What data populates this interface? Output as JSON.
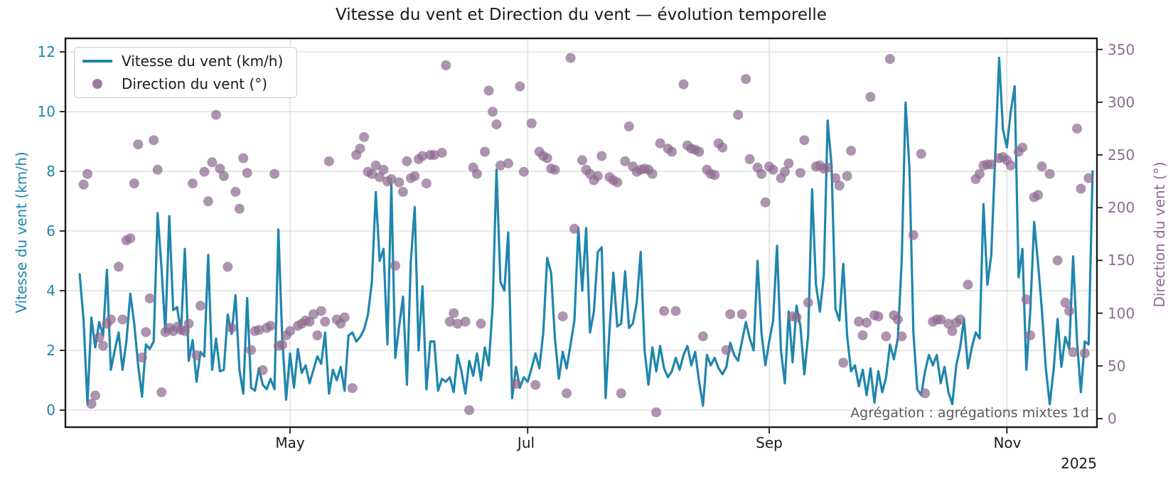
{
  "title": "Vitesse du vent et Direction du vent — évolution temporelle",
  "annotation": "Agrégation : agrégations mixtes 1d",
  "legend": [
    {
      "label": "Vitesse du vent (km/h)",
      "type": "line",
      "color": "#1f86ad"
    },
    {
      "label": "Direction du vent (°)",
      "type": "dot",
      "color": "#8e6b90"
    }
  ],
  "axes": {
    "left": {
      "label": "Vitesse du vent (km/h)",
      "color": "#1f86ad",
      "ticks": [
        "0",
        "2",
        "4",
        "6",
        "8",
        "10",
        "12"
      ]
    },
    "right": {
      "label": "Direction du vent (°)",
      "color": "#8e6b90",
      "ticks": [
        "0",
        "50",
        "100",
        "150",
        "200",
        "250",
        "300",
        "350"
      ]
    },
    "bottom": {
      "ticks": [
        "May",
        "Jul",
        "Sep",
        "Nov"
      ],
      "year": "2025"
    }
  },
  "chart_data": {
    "type": "line+scatter",
    "x_unit": "days since 2025-03-08 (1-day aggregation)",
    "x_tick_days": [
      54,
      115,
      177,
      238
    ],
    "x_tick_labels": [
      "May",
      "Jul",
      "Sep",
      "Nov"
    ],
    "left_ylim": [
      -0.57,
      12.45
    ],
    "right_ylim": [
      -8,
      362
    ],
    "left_grid_values": [
      0,
      2,
      4,
      6,
      8,
      10,
      12
    ],
    "right_tick_values": [
      0,
      50,
      100,
      150,
      200,
      250,
      300,
      350
    ],
    "series": [
      {
        "name": "Vitesse du vent (km/h)",
        "type": "line",
        "axis": "left",
        "color": "#1f86ad",
        "y": [
          4.55,
          3.0,
          0.2,
          3.1,
          2.1,
          2.95,
          2.5,
          4.7,
          1.35,
          2.0,
          2.6,
          1.35,
          2.3,
          3.9,
          2.9,
          1.5,
          0.45,
          2.2,
          2.05,
          2.3,
          6.6,
          4.75,
          2.6,
          6.5,
          3.35,
          3.45,
          2.6,
          5.4,
          1.65,
          2.35,
          0.95,
          1.95,
          1.8,
          5.2,
          1.35,
          2.4,
          1.3,
          1.35,
          3.2,
          2.55,
          3.85,
          1.35,
          0.55,
          3.75,
          0.75,
          0.65,
          1.4,
          0.85,
          0.7,
          1.05,
          0.7,
          6.05,
          2.4,
          0.35,
          1.9,
          0.75,
          2.05,
          1.25,
          1.5,
          0.9,
          1.35,
          1.8,
          1.55,
          2.6,
          0.55,
          1.35,
          1.0,
          1.45,
          0.65,
          2.5,
          2.6,
          2.3,
          2.45,
          2.7,
          3.2,
          4.3,
          7.3,
          5.0,
          5.4,
          2.2,
          7.55,
          1.75,
          2.8,
          3.8,
          0.85,
          5.0,
          6.8,
          2.0,
          4.15,
          0.7,
          2.3,
          2.3,
          0.65,
          1.05,
          0.95,
          1.1,
          0.6,
          1.85,
          1.3,
          0.55,
          1.65,
          1.15,
          1.9,
          1.0,
          2.1,
          1.5,
          3.5,
          8.05,
          4.3,
          4.0,
          5.95,
          0.4,
          1.45,
          0.75,
          1.1,
          0.95,
          1.4,
          1.9,
          1.4,
          2.6,
          5.1,
          4.6,
          2.4,
          1.05,
          1.95,
          1.4,
          2.2,
          3.0,
          6.1,
          4.0,
          6.1,
          2.6,
          3.3,
          5.3,
          5.45,
          0.4,
          2.7,
          4.6,
          2.8,
          2.9,
          4.65,
          2.75,
          2.9,
          3.6,
          5.3,
          2.0,
          0.85,
          2.1,
          1.3,
          2.15,
          1.4,
          1.1,
          1.3,
          1.75,
          1.35,
          1.85,
          2.15,
          1.5,
          1.95,
          0.95,
          0.15,
          1.85,
          1.5,
          1.75,
          1.4,
          1.2,
          1.45,
          2.25,
          1.85,
          1.65,
          2.3,
          2.95,
          2.4,
          2.0,
          5.0,
          2.6,
          1.5,
          2.3,
          3.0,
          5.5,
          2.0,
          0.9,
          3.3,
          1.6,
          3.5,
          2.8,
          1.2,
          2.5,
          7.4,
          4.2,
          3.3,
          4.5,
          9.7,
          8.2,
          3.4,
          3.0,
          4.9,
          2.5,
          1.3,
          1.5,
          0.8,
          1.35,
          0.5,
          1.4,
          0.25,
          1.3,
          0.6,
          1.1,
          2.2,
          1.7,
          2.4,
          5.0,
          10.3,
          8.1,
          2.6,
          0.7,
          0.5,
          1.3,
          1.85,
          1.5,
          1.85,
          0.9,
          1.45,
          0.6,
          0.2,
          1.5,
          2.1,
          3.05,
          1.4,
          2.1,
          2.6,
          2.4,
          6.9,
          4.2,
          5.2,
          8.5,
          11.8,
          9.4,
          8.8,
          10.0,
          10.85,
          4.45,
          5.4,
          1.35,
          3.3,
          6.3,
          4.9,
          3.35,
          1.4,
          0.2,
          1.35,
          3.05,
          1.45,
          2.45,
          2.05,
          5.15,
          2.3,
          0.6,
          2.3,
          2.2,
          8.0
        ]
      },
      {
        "name": "Direction du vent (°)",
        "type": "scatter",
        "axis": "right",
        "color": "#8e6b90",
        "points": [
          [
            1,
            222
          ],
          [
            2,
            232
          ],
          [
            3,
            14
          ],
          [
            4,
            22
          ],
          [
            5,
            77
          ],
          [
            6,
            69
          ],
          [
            7,
            90
          ],
          [
            8,
            94
          ],
          [
            10,
            144
          ],
          [
            11,
            94
          ],
          [
            12,
            169
          ],
          [
            13,
            171
          ],
          [
            14,
            223
          ],
          [
            15,
            260
          ],
          [
            16,
            58
          ],
          [
            17,
            82
          ],
          [
            18,
            114
          ],
          [
            19,
            264
          ],
          [
            20,
            236
          ],
          [
            21,
            25
          ],
          [
            22,
            82
          ],
          [
            23,
            86
          ],
          [
            24,
            83
          ],
          [
            25,
            87
          ],
          [
            26,
            84
          ],
          [
            27,
            83
          ],
          [
            28,
            90
          ],
          [
            29,
            223
          ],
          [
            30,
            60
          ],
          [
            31,
            107
          ],
          [
            32,
            234
          ],
          [
            33,
            206
          ],
          [
            34,
            243
          ],
          [
            35,
            288
          ],
          [
            36,
            237
          ],
          [
            37,
            230
          ],
          [
            38,
            144
          ],
          [
            39,
            86
          ],
          [
            40,
            215
          ],
          [
            41,
            199
          ],
          [
            42,
            247
          ],
          [
            43,
            233
          ],
          [
            44,
            65
          ],
          [
            45,
            83
          ],
          [
            46,
            84
          ],
          [
            47,
            46
          ],
          [
            48,
            86
          ],
          [
            49,
            88
          ],
          [
            50,
            232
          ],
          [
            51,
            69
          ],
          [
            52,
            70
          ],
          [
            53,
            79
          ],
          [
            54,
            83
          ],
          [
            56,
            88
          ],
          [
            57,
            90
          ],
          [
            58,
            93
          ],
          [
            59,
            92
          ],
          [
            60,
            99
          ],
          [
            61,
            79
          ],
          [
            62,
            102
          ],
          [
            63,
            92
          ],
          [
            64,
            244
          ],
          [
            66,
            94
          ],
          [
            67,
            90
          ],
          [
            68,
            96
          ],
          [
            70,
            29
          ],
          [
            71,
            250
          ],
          [
            72,
            256
          ],
          [
            73,
            267
          ],
          [
            74,
            234
          ],
          [
            75,
            232
          ],
          [
            76,
            240
          ],
          [
            77,
            229
          ],
          [
            78,
            236
          ],
          [
            79,
            225
          ],
          [
            80,
            227
          ],
          [
            81,
            145
          ],
          [
            82,
            224
          ],
          [
            83,
            215
          ],
          [
            84,
            244
          ],
          [
            85,
            228
          ],
          [
            86,
            230
          ],
          [
            87,
            246
          ],
          [
            88,
            249
          ],
          [
            89,
            223
          ],
          [
            90,
            250
          ],
          [
            91,
            250
          ],
          [
            93,
            252
          ],
          [
            94,
            335
          ],
          [
            95,
            92
          ],
          [
            96,
            100
          ],
          [
            97,
            90
          ],
          [
            99,
            92
          ],
          [
            100,
            8
          ],
          [
            101,
            238
          ],
          [
            102,
            232
          ],
          [
            103,
            90
          ],
          [
            104,
            253
          ],
          [
            105,
            311
          ],
          [
            106,
            291
          ],
          [
            107,
            279
          ],
          [
            108,
            240
          ],
          [
            110,
            242
          ],
          [
            112,
            33
          ],
          [
            113,
            315
          ],
          [
            114,
            234
          ],
          [
            116,
            280
          ],
          [
            117,
            32
          ],
          [
            118,
            253
          ],
          [
            119,
            249
          ],
          [
            120,
            247
          ],
          [
            121,
            237
          ],
          [
            122,
            236
          ],
          [
            124,
            97
          ],
          [
            125,
            24
          ],
          [
            126,
            342
          ],
          [
            127,
            180
          ],
          [
            129,
            245
          ],
          [
            130,
            236
          ],
          [
            131,
            232
          ],
          [
            132,
            226
          ],
          [
            133,
            230
          ],
          [
            134,
            249
          ],
          [
            136,
            229
          ],
          [
            137,
            226
          ],
          [
            138,
            224
          ],
          [
            139,
            24
          ],
          [
            140,
            244
          ],
          [
            141,
            277
          ],
          [
            142,
            239
          ],
          [
            143,
            234
          ],
          [
            144,
            236
          ],
          [
            145,
            237
          ],
          [
            146,
            236
          ],
          [
            147,
            232
          ],
          [
            148,
            6
          ],
          [
            149,
            261
          ],
          [
            150,
            102
          ],
          [
            151,
            256
          ],
          [
            152,
            253
          ],
          [
            153,
            102
          ],
          [
            155,
            317
          ],
          [
            156,
            259
          ],
          [
            157,
            256
          ],
          [
            158,
            255
          ],
          [
            159,
            253
          ],
          [
            160,
            78
          ],
          [
            161,
            236
          ],
          [
            162,
            232
          ],
          [
            163,
            231
          ],
          [
            164,
            261
          ],
          [
            165,
            257
          ],
          [
            166,
            65
          ],
          [
            167,
            99
          ],
          [
            169,
            288
          ],
          [
            170,
            99
          ],
          [
            171,
            322
          ],
          [
            172,
            246
          ],
          [
            174,
            238
          ],
          [
            175,
            232
          ],
          [
            176,
            205
          ],
          [
            177,
            239
          ],
          [
            178,
            236
          ],
          [
            180,
            228
          ],
          [
            181,
            234
          ],
          [
            182,
            242
          ],
          [
            183,
            97
          ],
          [
            184,
            96
          ],
          [
            185,
            233
          ],
          [
            186,
            264
          ],
          [
            187,
            110
          ],
          [
            189,
            239
          ],
          [
            190,
            240
          ],
          [
            191,
            237
          ],
          [
            192,
            238
          ],
          [
            194,
            228
          ],
          [
            195,
            221
          ],
          [
            196,
            53
          ],
          [
            197,
            230
          ],
          [
            198,
            254
          ],
          [
            200,
            92
          ],
          [
            201,
            79
          ],
          [
            202,
            91
          ],
          [
            203,
            305
          ],
          [
            204,
            98
          ],
          [
            205,
            97
          ],
          [
            207,
            78
          ],
          [
            208,
            341
          ],
          [
            209,
            98
          ],
          [
            210,
            94
          ],
          [
            211,
            78
          ],
          [
            214,
            174
          ],
          [
            216,
            251
          ],
          [
            217,
            24
          ],
          [
            219,
            92
          ],
          [
            220,
            94
          ],
          [
            221,
            94
          ],
          [
            223,
            90
          ],
          [
            224,
            83
          ],
          [
            225,
            91
          ],
          [
            226,
            94
          ],
          [
            228,
            127
          ],
          [
            230,
            227
          ],
          [
            231,
            232
          ],
          [
            232,
            240
          ],
          [
            233,
            241
          ],
          [
            234,
            241
          ],
          [
            236,
            247
          ],
          [
            237,
            248
          ],
          [
            238,
            245
          ],
          [
            239,
            240
          ],
          [
            241,
            253
          ],
          [
            242,
            257
          ],
          [
            243,
            113
          ],
          [
            244,
            79
          ],
          [
            245,
            210
          ],
          [
            246,
            212
          ],
          [
            247,
            239
          ],
          [
            249,
            232
          ],
          [
            251,
            150
          ],
          [
            253,
            110
          ],
          [
            254,
            102
          ],
          [
            255,
            63
          ],
          [
            256,
            275
          ],
          [
            257,
            218
          ],
          [
            258,
            62
          ],
          [
            259,
            228
          ]
        ]
      }
    ]
  }
}
